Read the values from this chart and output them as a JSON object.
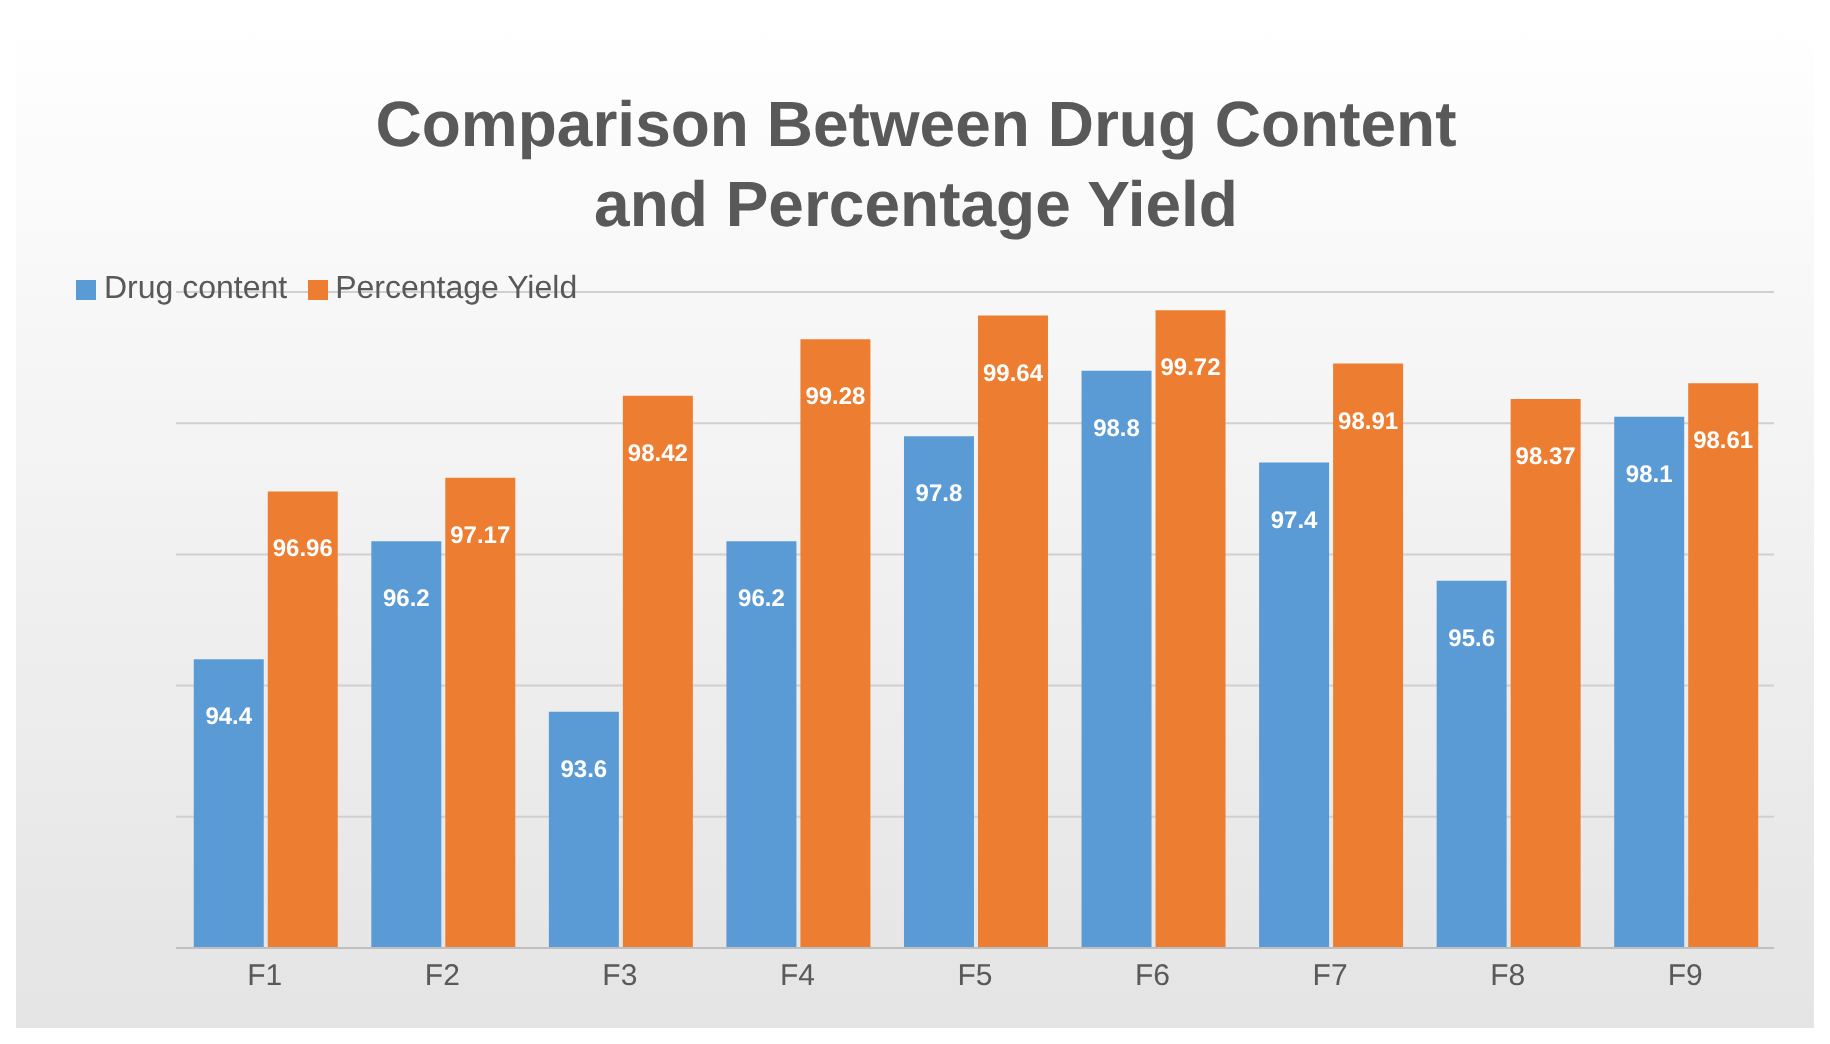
{
  "chart_data": {
    "type": "bar",
    "title": "Comparison Between Drug Content and Percentage Yield",
    "categories": [
      "F1",
      "F2",
      "F3",
      "F4",
      "F5",
      "F6",
      "F7",
      "F8",
      "F9"
    ],
    "series": [
      {
        "name": "Drug content",
        "color": "#5b9bd5",
        "values": [
          94.4,
          96.2,
          93.6,
          96.2,
          97.8,
          98.8,
          97.4,
          95.6,
          98.1
        ]
      },
      {
        "name": "Percentage Yield",
        "color": "#ed7d31",
        "values": [
          96.96,
          97.17,
          98.42,
          99.28,
          99.64,
          99.72,
          98.91,
          98.37,
          98.61
        ]
      }
    ],
    "ylim": [
      90,
      100
    ],
    "yticks": [
      {
        "value": 90,
        "label": null
      },
      {
        "value": 92,
        "label": null
      },
      {
        "value": 94,
        "label": null
      },
      {
        "value": 96,
        "label": null
      },
      {
        "value": 98,
        "label": null
      },
      {
        "value": 100,
        "label": null
      }
    ],
    "tick_labels": "x",
    "grid": "y",
    "legend": "top left",
    "data_labels": true
  }
}
